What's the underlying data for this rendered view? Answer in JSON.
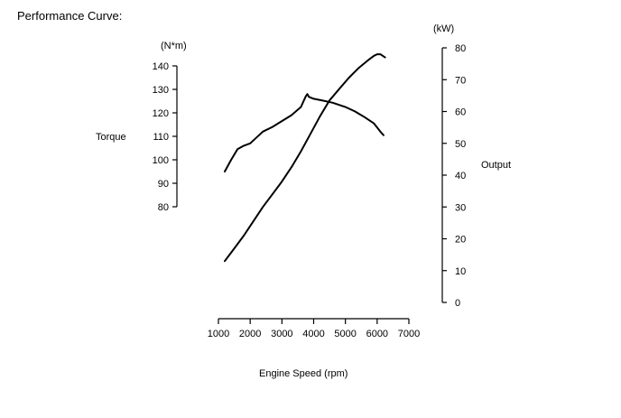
{
  "page": {
    "title": "Performance Curve:"
  },
  "chart_data": {
    "type": "line",
    "title": "Performance Curve:",
    "xlabel": "Engine Speed (rpm)",
    "xlim": [
      1000,
      7000
    ],
    "x_ticks": [
      1000,
      2000,
      3000,
      4000,
      5000,
      6000,
      7000
    ],
    "left_axis": {
      "label": "Torque",
      "unit": "(N*m)",
      "ylim": [
        80,
        140
      ],
      "ticks": [
        80,
        90,
        100,
        110,
        120,
        130,
        140
      ]
    },
    "right_axis": {
      "label": "Output",
      "unit": "(kW)",
      "ylim": [
        0,
        80
      ],
      "ticks": [
        0,
        10,
        20,
        30,
        40,
        50,
        60,
        70,
        80
      ]
    },
    "grid": false,
    "legend": "none",
    "series": [
      {
        "axis": "left",
        "x": [
          1200,
          1400,
          1600,
          1800,
          2000,
          2200,
          2400,
          2700,
          3000,
          3300,
          3600,
          3750,
          3800,
          3850,
          4000,
          4300,
          4600,
          5000,
          5300,
          5600,
          5900,
          6100,
          6200
        ],
        "values": [
          95,
          100,
          104.5,
          106,
          107,
          109.5,
          112,
          114,
          116.5,
          119,
          122.5,
          127,
          128,
          126.8,
          126,
          125.2,
          124.3,
          122.5,
          120.6,
          118.2,
          115.5,
          112,
          110.5
        ]
      },
      {
        "axis": "right",
        "x": [
          1200,
          1500,
          1800,
          2100,
          2400,
          2700,
          3000,
          3300,
          3600,
          3900,
          4200,
          4500,
          4800,
          5100,
          5400,
          5700,
          5900,
          6000,
          6100,
          6250
        ],
        "values": [
          13,
          17,
          21,
          25.5,
          30,
          34,
          38,
          42.5,
          47.5,
          53,
          58.5,
          63.5,
          67,
          70.5,
          73.5,
          76,
          77.5,
          78,
          78,
          77
        ]
      }
    ]
  }
}
